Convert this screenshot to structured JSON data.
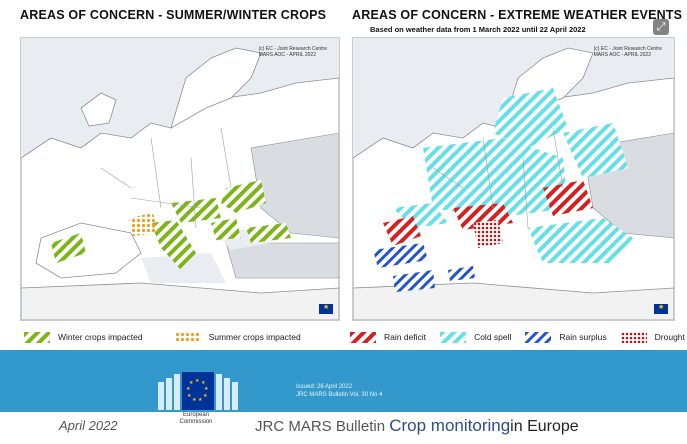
{
  "left_panel": {
    "title": "AREAS OF CONCERN - SUMMER/WINTER CROPS",
    "credit_line1": "(c) EC - Joint Research Centre",
    "credit_line2": "MARS AOC - APRIL 2022",
    "legend": [
      {
        "label": "Winter crops impacted",
        "pattern": "green-hatch",
        "color": "#7cb518"
      },
      {
        "label": "Summer crops impacted",
        "pattern": "orange-dots",
        "color": "#f0a020"
      }
    ]
  },
  "right_panel": {
    "title": "AREAS OF CONCERN - EXTREME WEATHER EVENTS",
    "subtitle": "Based on weather data from 1 March 2022 until 22 April 2022",
    "credit_line1": "(c) EC - Joint Research Centre",
    "credit_line2": "MARS AOC - APRIL 2022",
    "legend": [
      {
        "label": "Rain deficit",
        "pattern": "red-hatch",
        "color": "#d42020"
      },
      {
        "label": "Cold spell",
        "pattern": "cyan-hatch",
        "color": "#66e0e8"
      },
      {
        "label": "Rain surplus",
        "pattern": "blue-hatch",
        "color": "#2255cc"
      },
      {
        "label": "Drought",
        "pattern": "red-dots",
        "color": "#b01818"
      }
    ]
  },
  "banner": {
    "issued": "Issued: 26 April 2022",
    "volume": "JRC MARS Bulletin Vol. 30 No 4",
    "ec_line1": "European",
    "ec_line2": "Commission",
    "color": "#3399cc"
  },
  "footer": {
    "date": "April 2022",
    "bulletin_prefix": "JRC MARS Bulletin",
    "bulletin_accent": "Crop monitoring",
    "bulletin_suffix": "in Europe"
  },
  "icons": {
    "corner": "expand-icon",
    "eu_flag": "eu-flag-icon"
  }
}
